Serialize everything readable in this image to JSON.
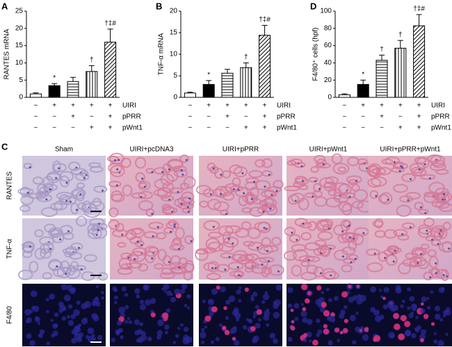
{
  "chart_data": [
    {
      "type": "bar",
      "panel": "A",
      "y_label": "RANTES mRNA",
      "categories": [
        null,
        null,
        null,
        null,
        null
      ],
      "values": [
        1.0,
        3.4,
        4.6,
        7.5,
        16.0
      ],
      "errors": [
        0.3,
        0.6,
        1.2,
        1.7,
        3.8
      ],
      "annotations": [
        null,
        "*",
        null,
        "†",
        "†‡#"
      ],
      "color": "#000000",
      "patterns": [
        "none",
        "solid",
        "horizontal",
        "vertical",
        "diagonal"
      ],
      "ylim": [
        0,
        25
      ],
      "yticks": [
        0,
        5,
        10,
        15,
        20,
        25
      ],
      "conditions": [
        {
          "name": "UIRI",
          "signs": [
            "−",
            "+",
            "+",
            "+",
            "+"
          ]
        },
        {
          "name": "pPRR",
          "signs": [
            "−",
            "−",
            "+",
            "−",
            "+"
          ]
        },
        {
          "name": "pWnt1",
          "signs": [
            "−",
            "−",
            "−",
            "+",
            "+"
          ]
        }
      ]
    },
    {
      "type": "bar",
      "panel": "B",
      "y_label": "TNF-α mRNA",
      "categories": [
        null,
        null,
        null,
        null,
        null
      ],
      "values": [
        1.0,
        3.0,
        5.6,
        6.9,
        14.4
      ],
      "errors": [
        0.2,
        0.9,
        0.9,
        1.1,
        2.3
      ],
      "annotations": [
        null,
        "*",
        null,
        "†",
        "†‡#"
      ],
      "color": "#000000",
      "patterns": [
        "none",
        "solid",
        "horizontal",
        "vertical",
        "diagonal"
      ],
      "ylim": [
        0,
        20
      ],
      "yticks": [
        0,
        5,
        10,
        15,
        20
      ],
      "conditions": [
        {
          "name": "UIRI",
          "signs": [
            "−",
            "+",
            "+",
            "+",
            "+"
          ]
        },
        {
          "name": "pPRR",
          "signs": [
            "−",
            "−",
            "+",
            "−",
            "+"
          ]
        },
        {
          "name": "pWnt1",
          "signs": [
            "−",
            "−",
            "−",
            "+",
            "+"
          ]
        }
      ]
    },
    {
      "type": "bar",
      "panel": "D",
      "y_label": "F4/80⁺ cells (hpf)",
      "categories": [
        null,
        null,
        null,
        null,
        null
      ],
      "values": [
        3,
        15,
        43,
        57,
        83
      ],
      "errors": [
        1,
        5,
        6,
        9,
        13
      ],
      "annotations": [
        null,
        "*",
        "†",
        "†",
        "†‡#"
      ],
      "color": "#000000",
      "patterns": [
        "none",
        "solid",
        "horizontal",
        "vertical",
        "diagonal"
      ],
      "ylim": [
        0,
        100
      ],
      "yticks": [
        0,
        20,
        40,
        60,
        80,
        100
      ],
      "conditions": [
        {
          "name": "UIRI",
          "signs": [
            "−",
            "+",
            "+",
            "+",
            "+"
          ]
        },
        {
          "name": "pPRR",
          "signs": [
            "−",
            "−",
            "+",
            "−",
            "+"
          ]
        },
        {
          "name": "pWnt1",
          "signs": [
            "−",
            "−",
            "−",
            "+",
            "+"
          ]
        }
      ]
    }
  ],
  "panel_c": {
    "label": "C",
    "columns": [
      "Sham",
      "UIRI+pcDNA3",
      "UIRI+pPRR",
      "UIRI+pWnt1",
      "UIRI+pPRR+pWnt1"
    ],
    "rows": [
      "RANTES",
      "TNF-α",
      "F4/80"
    ]
  }
}
